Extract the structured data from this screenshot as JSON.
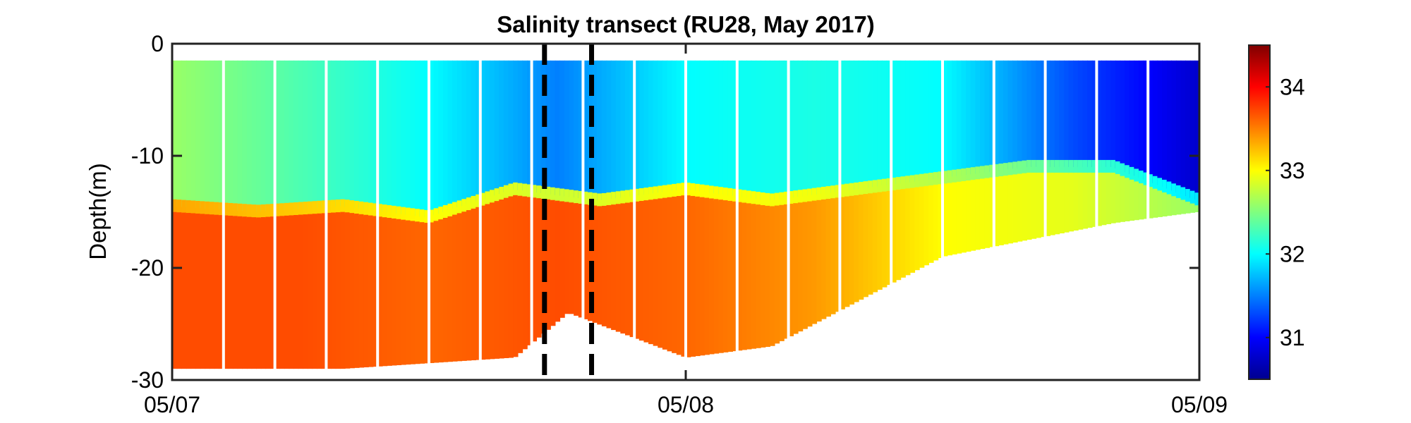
{
  "chart_data": {
    "type": "heatmap",
    "title": "Salinity transect (RU28, May 2017)",
    "xlabel": "",
    "ylabel": "Depth(m)",
    "x_tick_labels": [
      "05/07",
      "05/08",
      "05/09"
    ],
    "x_ticks": [
      "2017-05-07",
      "2017-05-08",
      "2017-05-09"
    ],
    "xlim": [
      "2017-05-07",
      "2017-05-09"
    ],
    "y_ticks": [
      0,
      -10,
      -20,
      -30
    ],
    "ylim": [
      -30,
      0
    ],
    "colorbar": {
      "colormap": "jet",
      "clim": [
        30.5,
        34.5
      ],
      "ticks": [
        31,
        32,
        33,
        34
      ]
    },
    "dashed_lines": [
      {
        "x": "2017-05-07T17:24",
        "color": "#000000"
      },
      {
        "x": "2017-05-07T19:36",
        "color": "#000000"
      }
    ],
    "surface_depth_profile": {
      "x": [
        "2017-05-07T00:00",
        "2017-05-07T04:00",
        "2017-05-07T08:00",
        "2017-05-07T12:00",
        "2017-05-07T16:00",
        "2017-05-07T20:00",
        "2017-05-08T00:00",
        "2017-05-08T04:00",
        "2017-05-08T08:00",
        "2017-05-08T12:00",
        "2017-05-08T16:00",
        "2017-05-08T20:00",
        "2017-05-09T00:00"
      ],
      "bottom_of_surface_layer_m": [
        -14.5,
        -15.0,
        -14.5,
        -15.5,
        -13.0,
        -14.0,
        -13.0,
        -14.0,
        -13.0,
        -12.0,
        -11.0,
        -11.0,
        -14.0
      ]
    },
    "water_bottom_profile": {
      "x": [
        "2017-05-07T00:00",
        "2017-05-07T04:00",
        "2017-05-07T08:00",
        "2017-05-07T12:00",
        "2017-05-07T16:00",
        "2017-05-07T18:30",
        "2017-05-08T00:00",
        "2017-05-08T04:00",
        "2017-05-08T08:00",
        "2017-05-08T12:00",
        "2017-05-08T16:00",
        "2017-05-08T20:00",
        "2017-05-09T00:00"
      ],
      "max_depth_m": [
        -29.0,
        -29.0,
        -29.0,
        -28.5,
        -28.0,
        -24.0,
        -28.0,
        -27.0,
        -23.0,
        -19.0,
        -17.5,
        -16.0,
        -15.0
      ]
    },
    "salinity_samples": {
      "x": [
        "2017-05-07T00:00",
        "2017-05-07T06:00",
        "2017-05-07T12:00",
        "2017-05-07T18:00",
        "2017-05-08T00:00",
        "2017-05-08T06:00",
        "2017-05-08T12:00",
        "2017-05-08T18:00",
        "2017-05-09T00:00"
      ],
      "surface": [
        32.6,
        32.3,
        32.0,
        31.5,
        32.0,
        32.1,
        32.0,
        31.3,
        30.8
      ],
      "deep": [
        33.7,
        33.7,
        33.6,
        33.7,
        33.6,
        33.4,
        33.0,
        32.9,
        32.6
      ]
    }
  }
}
